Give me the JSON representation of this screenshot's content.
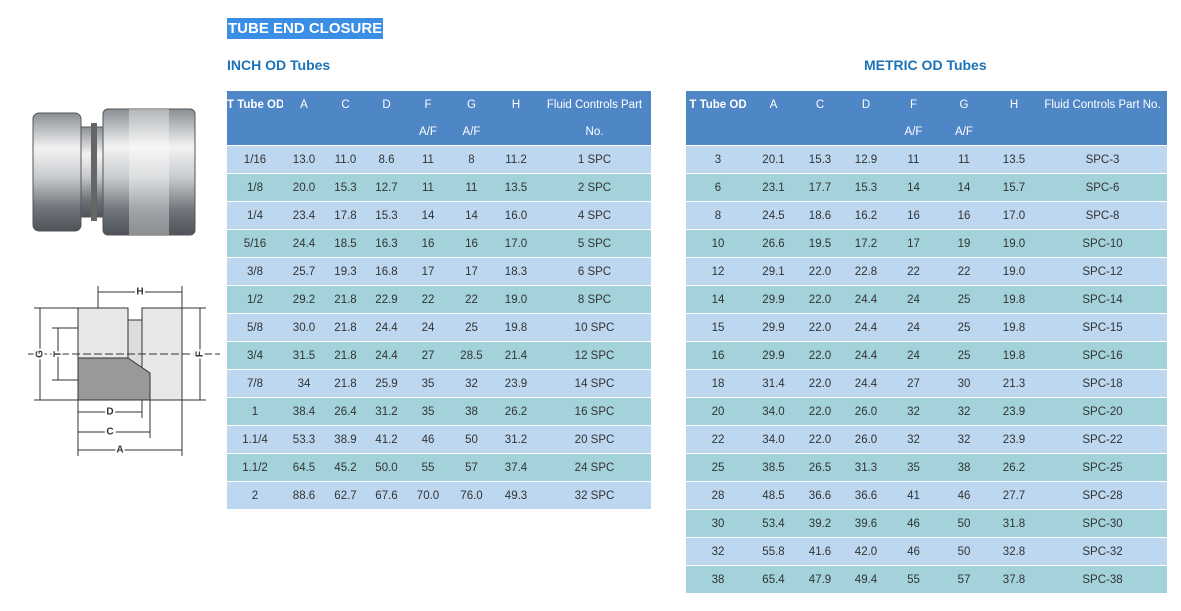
{
  "title": "TUBE END CLOSURE",
  "diagram": {
    "labels": [
      "H",
      "G",
      "T",
      "F",
      "D",
      "C",
      "A"
    ]
  },
  "inch_table": {
    "heading": "INCH OD Tubes",
    "header": [
      [
        "T Tube OD"
      ],
      [
        "A"
      ],
      [
        "C"
      ],
      [
        "D"
      ],
      [
        "F",
        "A/F"
      ],
      [
        "G",
        "A/F"
      ],
      [
        "H"
      ],
      [
        "Fluid Controls Part",
        "No."
      ]
    ],
    "rows": [
      [
        "1/16",
        "13.0",
        "11.0",
        "8.6",
        "11",
        "8",
        "11.2",
        "1 SPC"
      ],
      [
        "1/8",
        "20.0",
        "15.3",
        "12.7",
        "11",
        "11",
        "13.5",
        "2 SPC"
      ],
      [
        "1/4",
        "23.4",
        "17.8",
        "15.3",
        "14",
        "14",
        "16.0",
        "4 SPC"
      ],
      [
        "5/16",
        "24.4",
        "18.5",
        "16.3",
        "16",
        "16",
        "17.0",
        "5 SPC"
      ],
      [
        "3/8",
        "25.7",
        "19.3",
        "16.8",
        "17",
        "17",
        "18.3",
        "6 SPC"
      ],
      [
        "1/2",
        "29.2",
        "21.8",
        "22.9",
        "22",
        "22",
        "19.0",
        "8 SPC"
      ],
      [
        "5/8",
        "30.0",
        "21.8",
        "24.4",
        "24",
        "25",
        "19.8",
        "10 SPC"
      ],
      [
        "3/4",
        "31.5",
        "21.8",
        "24.4",
        "27",
        "28.5",
        "21.4",
        "12 SPC"
      ],
      [
        "7/8",
        "34",
        "21.8",
        "25.9",
        "35",
        "32",
        "23.9",
        "14 SPC"
      ],
      [
        "1",
        "38.4",
        "26.4",
        "31.2",
        "35",
        "38",
        "26.2",
        "16 SPC"
      ],
      [
        "1.1/4",
        "53.3",
        "38.9",
        "41.2",
        "46",
        "50",
        "31.2",
        "20 SPC"
      ],
      [
        "1.1/2",
        "64.5",
        "45.2",
        "50.0",
        "55",
        "57",
        "37.4",
        "24 SPC"
      ],
      [
        "2",
        "88.6",
        "62.7",
        "67.6",
        "70.0",
        "76.0",
        "49.3",
        "32 SPC"
      ]
    ]
  },
  "metric_table": {
    "heading": "METRIC OD Tubes",
    "header": [
      [
        "T Tube OD"
      ],
      [
        "A"
      ],
      [
        "C"
      ],
      [
        "D"
      ],
      [
        "F",
        "A/F"
      ],
      [
        "G",
        "A/F"
      ],
      [
        "H"
      ],
      [
        "Fluid Controls Part No."
      ]
    ],
    "rows": [
      [
        "3",
        "20.1",
        "15.3",
        "12.9",
        "11",
        "11",
        "13.5",
        "SPC-3"
      ],
      [
        "6",
        "23.1",
        "17.7",
        "15.3",
        "14",
        "14",
        "15.7",
        "SPC-6"
      ],
      [
        "8",
        "24.5",
        "18.6",
        "16.2",
        "16",
        "16",
        "17.0",
        "SPC-8"
      ],
      [
        "10",
        "26.6",
        "19.5",
        "17.2",
        "17",
        "19",
        "19.0",
        "SPC-10"
      ],
      [
        "12",
        "29.1",
        "22.0",
        "22.8",
        "22",
        "22",
        "19.0",
        "SPC-12"
      ],
      [
        "14",
        "29.9",
        "22.0",
        "24.4",
        "24",
        "25",
        "19.8",
        "SPC-14"
      ],
      [
        "15",
        "29.9",
        "22.0",
        "24.4",
        "24",
        "25",
        "19.8",
        "SPC-15"
      ],
      [
        "16",
        "29.9",
        "22.0",
        "24.4",
        "24",
        "25",
        "19.8",
        "SPC-16"
      ],
      [
        "18",
        "31.4",
        "22.0",
        "24.4",
        "27",
        "30",
        "21.3",
        "SPC-18"
      ],
      [
        "20",
        "34.0",
        "22.0",
        "26.0",
        "32",
        "32",
        "23.9",
        "SPC-20"
      ],
      [
        "22",
        "34.0",
        "22.0",
        "26.0",
        "32",
        "32",
        "23.9",
        "SPC-22"
      ],
      [
        "25",
        "38.5",
        "26.5",
        "31.3",
        "35",
        "38",
        "26.2",
        "SPC-25"
      ],
      [
        "28",
        "48.5",
        "36.6",
        "36.6",
        "41",
        "46",
        "27.7",
        "SPC-28"
      ],
      [
        "30",
        "53.4",
        "39.2",
        "39.6",
        "46",
        "50",
        "31.8",
        "SPC-30"
      ],
      [
        "32",
        "55.8",
        "41.6",
        "42.0",
        "46",
        "50",
        "32.8",
        "SPC-32"
      ],
      [
        "38",
        "65.4",
        "47.9",
        "49.4",
        "55",
        "57",
        "37.8",
        "SPC-38"
      ]
    ]
  }
}
